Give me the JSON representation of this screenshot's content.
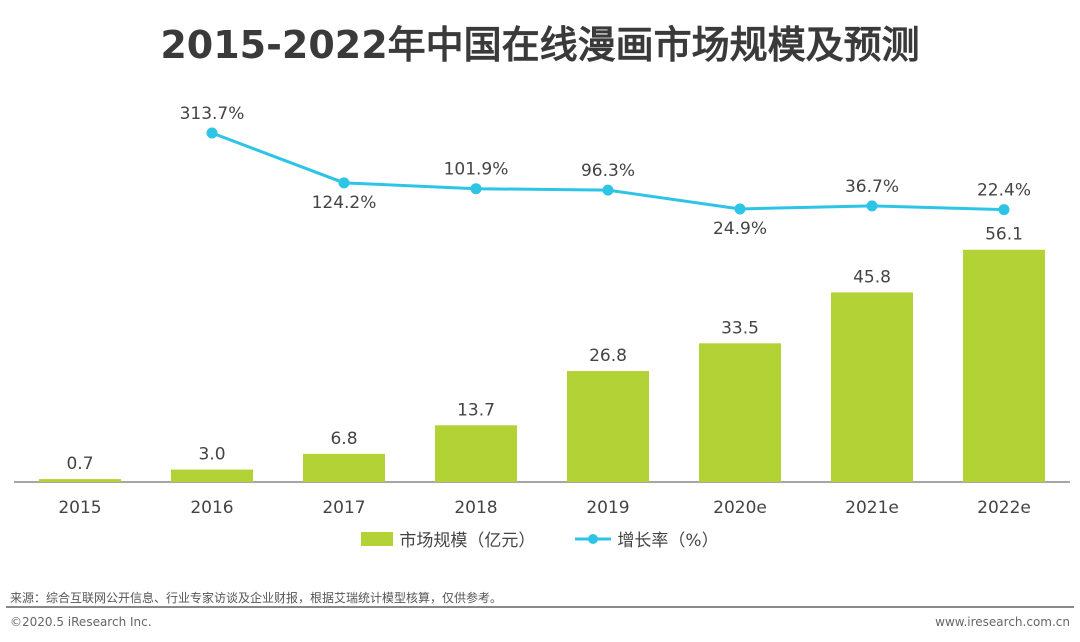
{
  "chart_data": {
    "type": "bar+line",
    "title": "2015-2022年中国在线漫画市场规模及预测",
    "categories": [
      "2015",
      "2016",
      "2017",
      "2018",
      "2019",
      "2020e",
      "2021e",
      "2022e"
    ],
    "series": [
      {
        "name": "市场规模（亿元）",
        "type": "bar",
        "color": "#b2d235",
        "values": [
          0.7,
          3.0,
          6.8,
          13.7,
          26.8,
          33.5,
          45.8,
          56.1
        ]
      },
      {
        "name": "增长率（%）",
        "type": "line",
        "color": "#2ec4e6",
        "values": [
          null,
          313.7,
          124.2,
          101.9,
          96.3,
          24.9,
          36.7,
          22.4
        ]
      }
    ],
    "legend_position": "bottom",
    "grid": false
  },
  "footer": {
    "source": "来源：综合互联网公开信息、行业专家访谈及企业财报，根据艾瑞统计模型核算，仅供参考。",
    "copyright": "©2020.5 iResearch Inc.",
    "website": "www.iresearch.com.cn"
  }
}
